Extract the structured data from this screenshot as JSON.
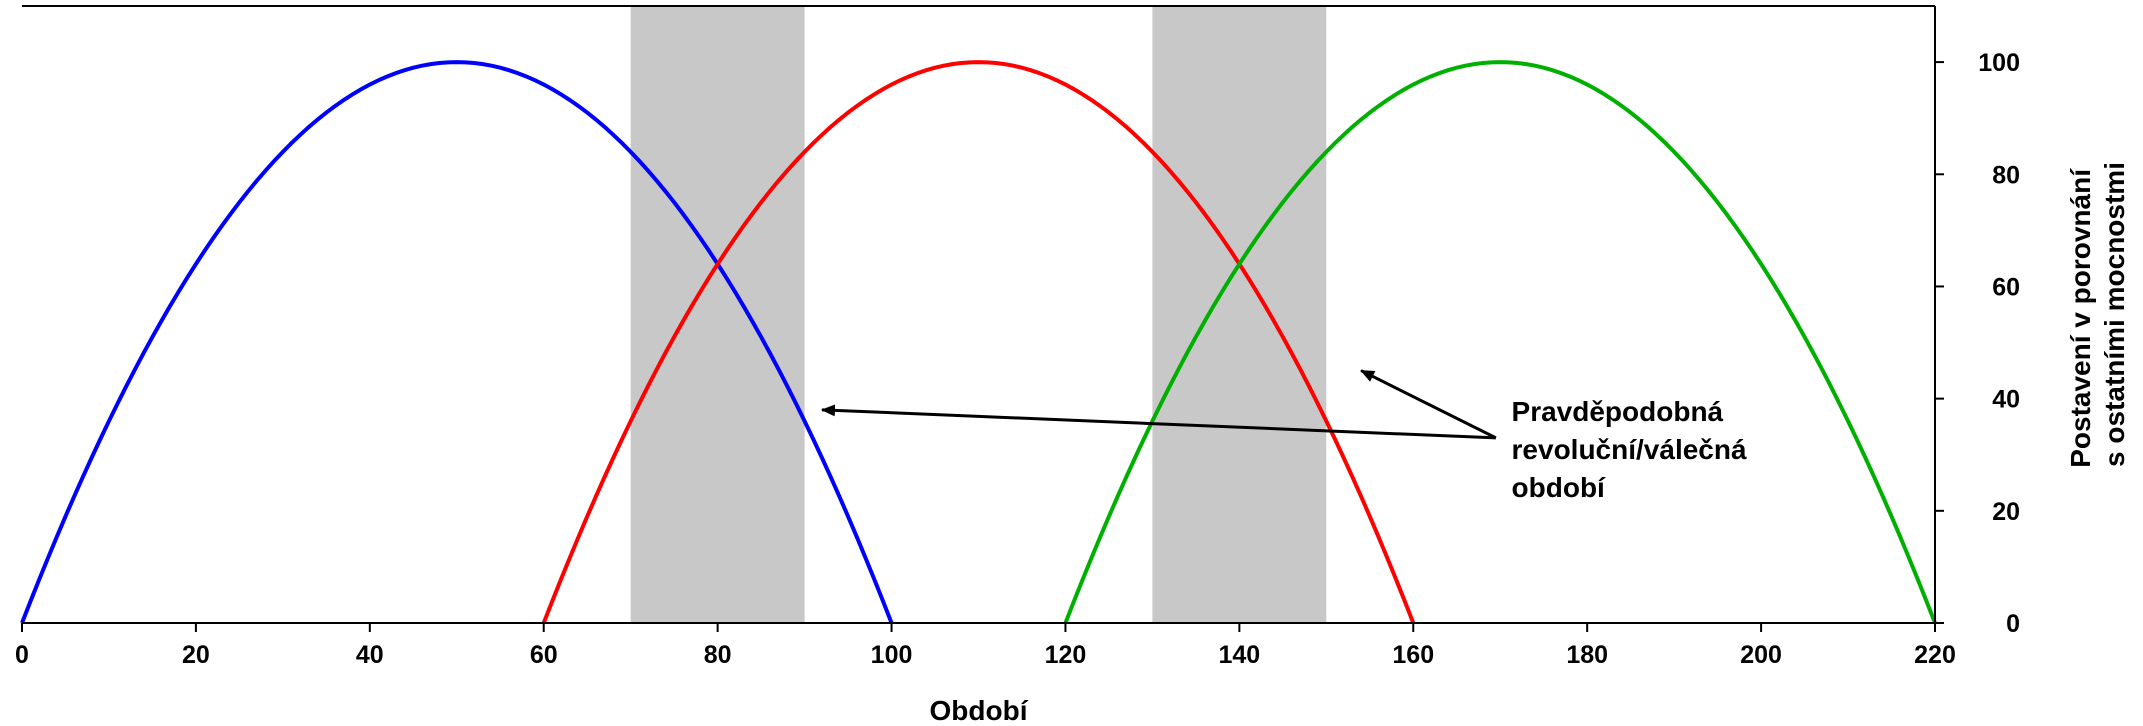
{
  "chart_data": {
    "type": "line",
    "title": "",
    "xlabel": "Období",
    "ylabel_lines": [
      "Postavení v porovnání",
      "s ostatními mocnostmi"
    ],
    "xlim": [
      0,
      220
    ],
    "ylim": [
      0,
      110
    ],
    "x_ticks": [
      "0",
      "20",
      "40",
      "60",
      "80",
      "100",
      "120",
      "140",
      "160",
      "180",
      "200",
      "220"
    ],
    "y_ticks": [
      "0",
      "20",
      "40",
      "60",
      "80",
      "100"
    ],
    "y_axis_position": "right",
    "grid": false,
    "legend": "none",
    "shaded_periods": [
      {
        "x_start": 70,
        "x_end": 90,
        "color": "#c8c8c8"
      },
      {
        "x_start": 130,
        "x_end": 150,
        "color": "#c8c8c8"
      }
    ],
    "series": [
      {
        "color": "#0000ff",
        "x": [
          0,
          10,
          20,
          30,
          40,
          50,
          60,
          70,
          80,
          90,
          100
        ],
        "y": [
          0,
          36,
          64,
          84,
          96,
          100,
          96,
          84,
          64,
          36,
          0
        ]
      },
      {
        "color": "#ff0000",
        "x": [
          60,
          70,
          80,
          90,
          100,
          110,
          120,
          130,
          140,
          150,
          160
        ],
        "y": [
          0,
          36,
          64,
          84,
          96,
          100,
          96,
          84,
          64,
          36,
          0
        ]
      },
      {
        "color": "#00b000",
        "x": [
          120,
          130,
          140,
          150,
          160,
          170,
          180,
          190,
          200,
          210,
          220
        ],
        "y": [
          0,
          36,
          64,
          84,
          96,
          100,
          96,
          84,
          64,
          36,
          0
        ]
      }
    ],
    "annotation": {
      "lines": [
        "Pravděpodobná",
        "revoluční/válečná",
        "období"
      ],
      "arrow_targets": [
        {
          "x": 92,
          "y": 38
        },
        {
          "x": 154,
          "y": 45
        }
      ]
    }
  }
}
